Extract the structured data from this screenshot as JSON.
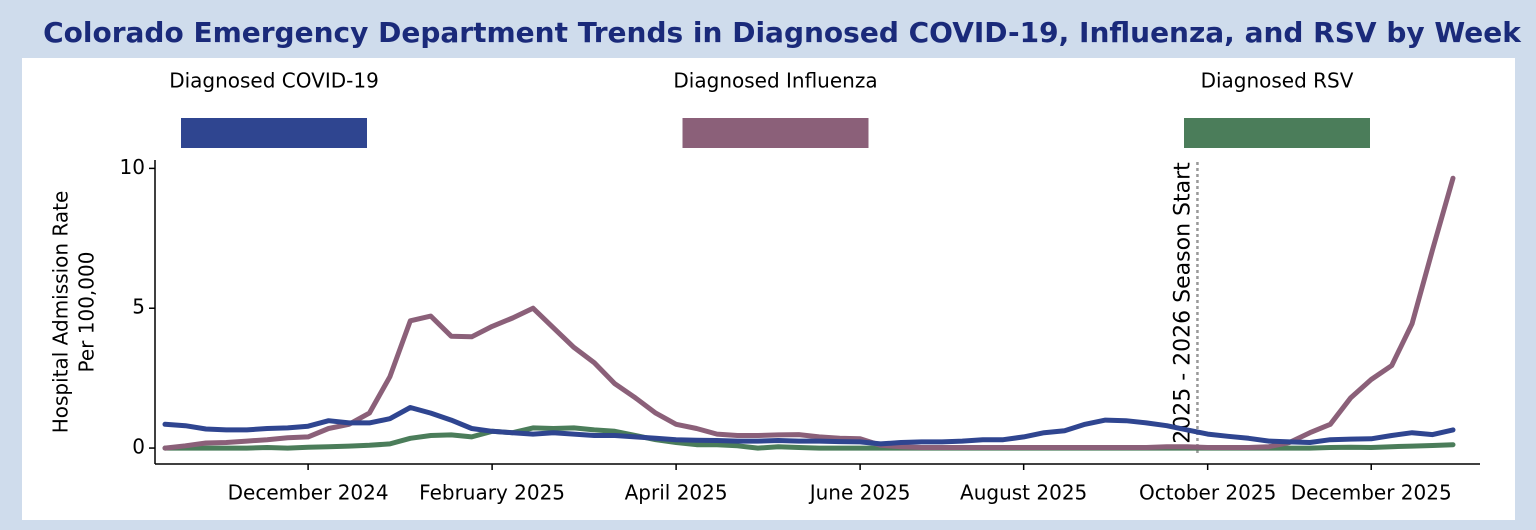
{
  "chart_data": {
    "type": "line",
    "title": "Colorado Emergency Department Trends in Diagnosed COVID-19, Influenza, and RSV by Week",
    "y_label": [
      "Hospital Admission Rate",
      "Per 100,000"
    ],
    "legend": "top",
    "categories": [
      null,
      null,
      null,
      null,
      null,
      null,
      null,
      "December 2024",
      null,
      null,
      null,
      null,
      null,
      null,
      null,
      null,
      "February 2025",
      null,
      null,
      null,
      null,
      null,
      null,
      null,
      null,
      "April 2025",
      null,
      null,
      null,
      null,
      null,
      null,
      null,
      null,
      "June 2025",
      null,
      null,
      null,
      null,
      null,
      null,
      null,
      "August 2025",
      null,
      null,
      null,
      null,
      null,
      null,
      null,
      null,
      "October 2025",
      null,
      null,
      null,
      null,
      null,
      null,
      null,
      "December 2025",
      null,
      null,
      null,
      null
    ],
    "series": [
      {
        "name": "Diagnosed COVID-19",
        "color": "#2f4590",
        "values": [
          0.85,
          0.8,
          0.68,
          0.65,
          0.65,
          0.7,
          0.72,
          0.78,
          0.98,
          0.9,
          0.9,
          1.05,
          1.45,
          1.25,
          1.0,
          0.7,
          0.6,
          0.55,
          0.5,
          0.55,
          0.5,
          0.45,
          0.45,
          0.4,
          0.35,
          0.3,
          0.28,
          0.27,
          0.25,
          0.25,
          0.27,
          0.25,
          0.25,
          0.23,
          0.22,
          0.15,
          0.2,
          0.22,
          0.22,
          0.25,
          0.3,
          0.3,
          0.4,
          0.55,
          0.62,
          0.85,
          1.0,
          0.98,
          0.9,
          0.8,
          0.65,
          0.5,
          0.42,
          0.35,
          0.25,
          0.22,
          0.2,
          0.3,
          0.32,
          0.33,
          0.45,
          0.55,
          0.48,
          0.65
        ]
      },
      {
        "name": "Diagnosed Influenza",
        "color": "#8b6079",
        "values": [
          0.0,
          0.08,
          0.18,
          0.2,
          0.25,
          0.3,
          0.37,
          0.4,
          0.7,
          0.85,
          1.25,
          2.55,
          4.55,
          4.72,
          4.0,
          3.98,
          4.35,
          4.65,
          5.0,
          4.3,
          3.6,
          3.05,
          2.3,
          1.8,
          1.25,
          0.85,
          0.7,
          0.5,
          0.45,
          0.45,
          0.47,
          0.48,
          0.4,
          0.35,
          0.33,
          0.1,
          0.05,
          0.02,
          0.02,
          0.02,
          0.02,
          0.02,
          0.02,
          0.02,
          0.02,
          0.02,
          0.02,
          0.02,
          0.02,
          0.05,
          0.05,
          0.02,
          0.02,
          0.02,
          0.05,
          0.2,
          0.55,
          0.85,
          1.8,
          2.45,
          2.95,
          4.45,
          7.1,
          9.65
        ]
      },
      {
        "name": "Diagnosed RSV",
        "color": "#4b7d5a",
        "values": [
          0.0,
          0.0,
          0.0,
          0.0,
          0.0,
          0.02,
          0.0,
          0.03,
          0.05,
          0.07,
          0.1,
          0.15,
          0.35,
          0.45,
          0.47,
          0.4,
          0.6,
          0.55,
          0.72,
          0.7,
          0.72,
          0.65,
          0.6,
          0.45,
          0.3,
          0.2,
          0.12,
          0.12,
          0.08,
          0.0,
          0.05,
          0.02,
          0.0,
          0.0,
          0.0,
          0.0,
          0.0,
          0.0,
          0.0,
          0.0,
          0.0,
          0.0,
          0.0,
          0.0,
          0.0,
          0.0,
          0.0,
          0.0,
          0.0,
          0.0,
          0.0,
          0.0,
          0.0,
          0.0,
          0.0,
          0.0,
          0.0,
          0.02,
          0.03,
          0.02,
          0.05,
          0.07,
          0.09,
          0.12
        ]
      }
    ],
    "ylim": [
      -0.57,
      10.3
    ],
    "yticks": [
      0,
      5,
      10
    ],
    "annotation": {
      "text": "2025 - 2026 Season Start",
      "x": 50.5
    }
  }
}
